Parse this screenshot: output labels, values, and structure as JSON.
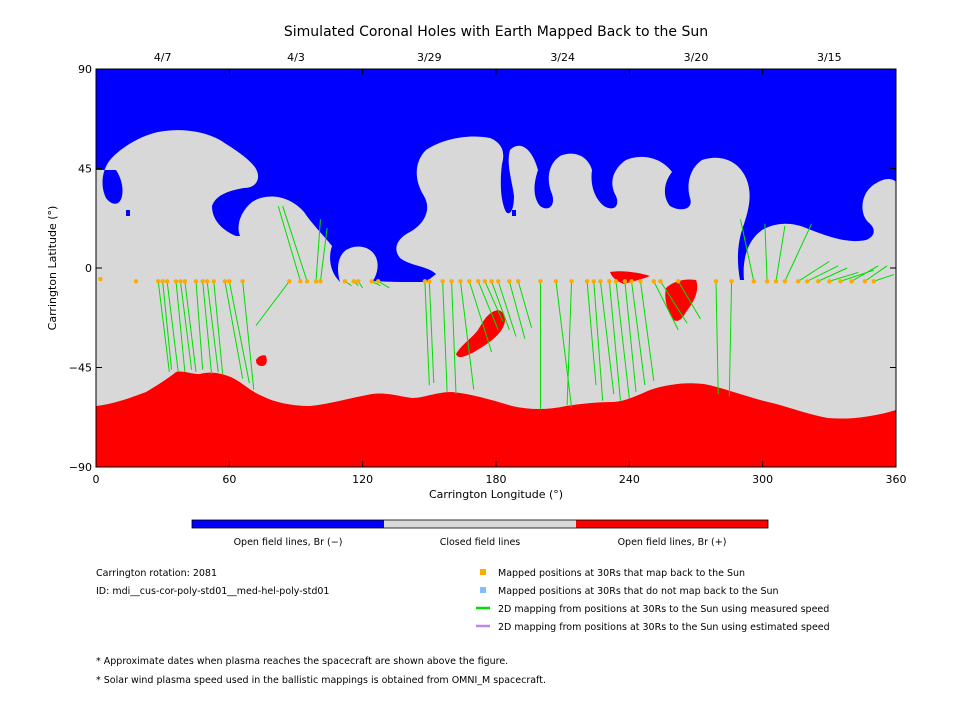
{
  "chart_data": {
    "type": "map",
    "title": "Simulated Coronal Holes with Earth Mapped Back to the Sun",
    "xlabel": "Carrington Longitude (°)",
    "ylabel": "Carrington Latitude (°)",
    "xlim": [
      0,
      360
    ],
    "ylim": [
      -90,
      90
    ],
    "xticks": [
      0,
      60,
      120,
      180,
      240,
      300,
      360
    ],
    "yticks": [
      90,
      45,
      0,
      -45,
      -90
    ],
    "date_axis": [
      {
        "label": "4/7",
        "lon": 30
      },
      {
        "label": "4/3",
        "lon": 90
      },
      {
        "label": "3/29",
        "lon": 150
      },
      {
        "label": "3/24",
        "lon": 210
      },
      {
        "label": "3/20",
        "lon": 270
      },
      {
        "label": "3/15",
        "lon": 330
      }
    ],
    "colors": {
      "open_negative": "#0000ff",
      "closed": "#d8d8d8",
      "open_positive": "#ff0000",
      "mapped_point": "#ffaa00",
      "unmapped_point": "#7fbfff",
      "measured_line": "#00dd00",
      "estimated_line": "#bb88ee"
    },
    "colorbar": [
      {
        "label": "Open field lines, Br (−)",
        "color": "#0000ff"
      },
      {
        "label": "Closed field lines",
        "color": "#d8d8d8"
      },
      {
        "label": "Open field lines, Br (+)",
        "color": "#ff0000"
      }
    ],
    "info": {
      "rotation": "Carrington rotation: 2081",
      "id": "ID: mdi__cus-cor-poly-std01__med-hel-poly-std01"
    },
    "legend": [
      {
        "label": "Mapped positions at 30Rs that map back to the Sun",
        "kind": "square",
        "color": "#ffaa00"
      },
      {
        "label": "Mapped positions at 30Rs that do not map back to the Sun",
        "kind": "square",
        "color": "#7fbfff"
      },
      {
        "label": "2D mapping from positions at 30Rs to the Sun using measured speed",
        "kind": "line",
        "color": "#00dd00"
      },
      {
        "label": "2D mapping from positions at 30Rs to the Sun using estimated speed",
        "kind": "line",
        "color": "#bb88ee"
      }
    ],
    "footnotes": [
      "* Approximate dates when plasma reaches the spacecraft are shown above the figure.",
      "* Solar wind plasma speed used in the ballistic mappings is obtained from OMNI_M spacecraft."
    ],
    "mappings": [
      [
        2,
        -5,
        2,
        -5
      ],
      [
        18,
        -6,
        18,
        -6
      ],
      [
        28,
        -6,
        33,
        -47
      ],
      [
        30,
        -6,
        34,
        -46
      ],
      [
        32,
        -6,
        37,
        -47
      ],
      [
        36,
        -6,
        40,
        -47
      ],
      [
        38,
        -6,
        43,
        -46
      ],
      [
        40,
        -6,
        45,
        -47
      ],
      [
        45,
        -6,
        48,
        -46
      ],
      [
        48,
        -6,
        52,
        -48
      ],
      [
        50,
        -6,
        55,
        -47
      ],
      [
        53,
        -6,
        57,
        -48
      ],
      [
        58,
        -6,
        66,
        -50
      ],
      [
        60,
        -6,
        69,
        -52
      ],
      [
        66,
        -6,
        71,
        -55
      ],
      [
        87,
        -6,
        72,
        -26
      ],
      [
        92,
        -6,
        82,
        28
      ],
      [
        95,
        -6,
        84,
        28
      ],
      [
        99,
        -6,
        101,
        22
      ],
      [
        101,
        -6,
        104,
        18
      ],
      [
        112,
        -6,
        115,
        -8
      ],
      [
        116,
        -6,
        118,
        -8
      ],
      [
        118,
        -6,
        120,
        -9
      ],
      [
        124,
        -6,
        128,
        -8
      ],
      [
        127,
        -6,
        132,
        -9
      ],
      [
        148,
        -6,
        150,
        -53
      ],
      [
        150,
        -6,
        152,
        -52
      ],
      [
        156,
        -6,
        158,
        -56
      ],
      [
        160,
        -6,
        162,
        -57
      ],
      [
        164,
        -6,
        170,
        -55
      ],
      [
        168,
        -6,
        178,
        -38
      ],
      [
        172,
        -6,
        181,
        -28
      ],
      [
        175,
        -6,
        183,
        -24
      ],
      [
        178,
        -6,
        186,
        -28
      ],
      [
        181,
        -6,
        189,
        -31
      ],
      [
        186,
        -6,
        193,
        -32
      ],
      [
        190,
        -6,
        196,
        -27
      ],
      [
        200,
        -6,
        200,
        -64
      ],
      [
        207,
        -6,
        214,
        -63
      ],
      [
        214,
        -6,
        212,
        -62
      ],
      [
        221,
        -6,
        225,
        -53
      ],
      [
        224,
        -6,
        228,
        -60
      ],
      [
        227,
        -6,
        233,
        -57
      ],
      [
        231,
        -6,
        236,
        -60
      ],
      [
        234,
        -6,
        240,
        -59
      ],
      [
        238,
        -6,
        243,
        -56
      ],
      [
        241,
        -6,
        247,
        -53
      ],
      [
        245,
        -6,
        251,
        -51
      ],
      [
        251,
        -6,
        262,
        -28
      ],
      [
        254,
        -6,
        266,
        -25
      ],
      [
        262,
        -6,
        272,
        -23
      ],
      [
        279,
        -6,
        280,
        -57
      ],
      [
        286,
        -6,
        285,
        -58
      ],
      [
        296,
        -6,
        290,
        22
      ],
      [
        302,
        -6,
        301,
        20
      ],
      [
        306,
        -6,
        310,
        19
      ],
      [
        310,
        -6,
        322,
        20
      ],
      [
        316,
        -6,
        330,
        3
      ],
      [
        320,
        -6,
        334,
        1
      ],
      [
        325,
        -6,
        338,
        0
      ],
      [
        330,
        -6,
        343,
        -2
      ],
      [
        335,
        -6,
        350,
        -1
      ],
      [
        340,
        -6,
        352,
        1
      ],
      [
        346,
        -6,
        356,
        1
      ],
      [
        350,
        -6,
        359,
        -3
      ]
    ]
  }
}
